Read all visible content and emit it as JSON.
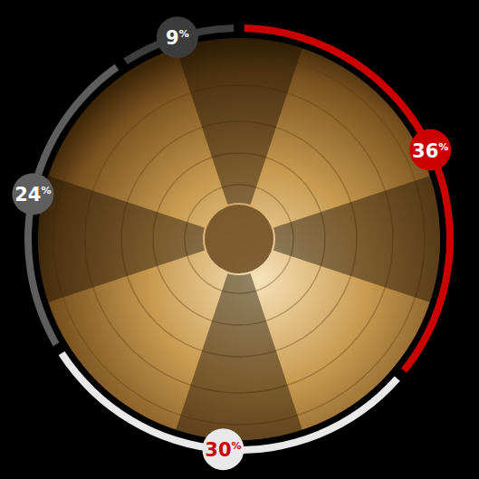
{
  "chart_data": {
    "type": "donut",
    "values": [
      36,
      30,
      24,
      9
    ],
    "value_labels": [
      "36%",
      "30%",
      "24%",
      "9%"
    ],
    "colors": [
      "#cc0000",
      "#e9e9e9",
      "#5e5e5e",
      "#3c3c3c"
    ],
    "data_labels": true
  }
}
